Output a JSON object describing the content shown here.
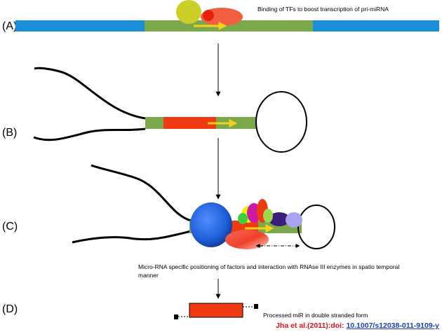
{
  "panels": {
    "a": {
      "label": "(A)",
      "caption": "Binding of TFs to boost transcription of pri-miRNA"
    },
    "b": {
      "label": "(B)"
    },
    "c": {
      "label": "(C)",
      "caption_line1": "Micro-RNA specific positioning of factors and interaction with RNAse III enzymes in spatio temporal",
      "caption_line2": "manner"
    },
    "d": {
      "label": "(D)",
      "caption": "Processed miR in double stranded form"
    }
  },
  "citation": {
    "prefix": "Jha et al.(2011):doi: ",
    "doi": "10.1007/s12038-011-9109-y"
  },
  "colors": {
    "dna_blue": "#1a8fd8",
    "transcript_green": "#7aa84a",
    "hairpin_red": "#f03a12",
    "arrow_yellow": "#f2d21a",
    "tf_yellow": "#cccf28",
    "drosha_blue": "#1f5fd9",
    "citation_red": "#e0101a",
    "link_blue": "#1a3fbf"
  }
}
